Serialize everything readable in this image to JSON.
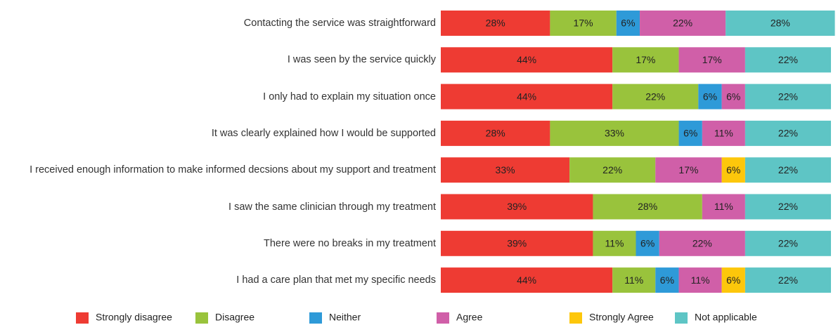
{
  "chart_data": {
    "type": "stacked-bar-horizontal",
    "categories": [
      "Contacting the service was straightforward",
      "I was seen by the service quickly",
      "I only had to explain my situation once",
      "It was clearly explained how I would be supported",
      "I received enough information to make informed decsions about my support and treatment",
      "I saw the same clinician through my treatment",
      "There were no breaks in my treatment",
      "I had a care plan that met my specific needs"
    ],
    "series": [
      {
        "name": "Strongly disagree",
        "color": "#ee3b33",
        "values": [
          28,
          44,
          44,
          28,
          33,
          39,
          39,
          44
        ],
        "value_labels": [
          "28%",
          "44%",
          "44%",
          "28%",
          "33%",
          "39%",
          "39%",
          "44%"
        ]
      },
      {
        "name": "Disagree",
        "color": "#99c33c",
        "values": [
          17,
          17,
          22,
          33,
          22,
          28,
          11,
          11
        ],
        "value_labels": [
          "17%",
          "17%",
          "22%",
          "33%",
          "22%",
          "28%",
          "11%",
          "11%"
        ]
      },
      {
        "name": "Neither",
        "color": "#2e9ad8",
        "values": [
          6,
          0,
          6,
          6,
          0,
          0,
          6,
          6
        ],
        "value_labels": [
          "6%",
          null,
          "6%",
          "6%",
          null,
          null,
          "6%",
          "6%"
        ]
      },
      {
        "name": "Agree",
        "color": "#d05fa8",
        "values": [
          22,
          17,
          6,
          11,
          17,
          11,
          22,
          11
        ],
        "value_labels": [
          "22%",
          "17%",
          "6%",
          "11%",
          "17%",
          "11%",
          "22%",
          "11%"
        ]
      },
      {
        "name": "Strongly Agree",
        "color": "#fdc70b",
        "values": [
          0,
          0,
          0,
          0,
          6,
          0,
          0,
          6
        ],
        "value_labels": [
          null,
          null,
          null,
          null,
          "6%",
          null,
          null,
          "6%"
        ]
      },
      {
        "name": "Not applicable",
        "color": "#5ec5c5",
        "values": [
          28,
          22,
          22,
          22,
          22,
          22,
          22,
          22
        ],
        "value_labels": [
          "28%",
          "22%",
          "22%",
          "22%",
          "22%",
          "22%",
          "22%",
          "22%"
        ]
      }
    ],
    "legend": "bottom"
  }
}
